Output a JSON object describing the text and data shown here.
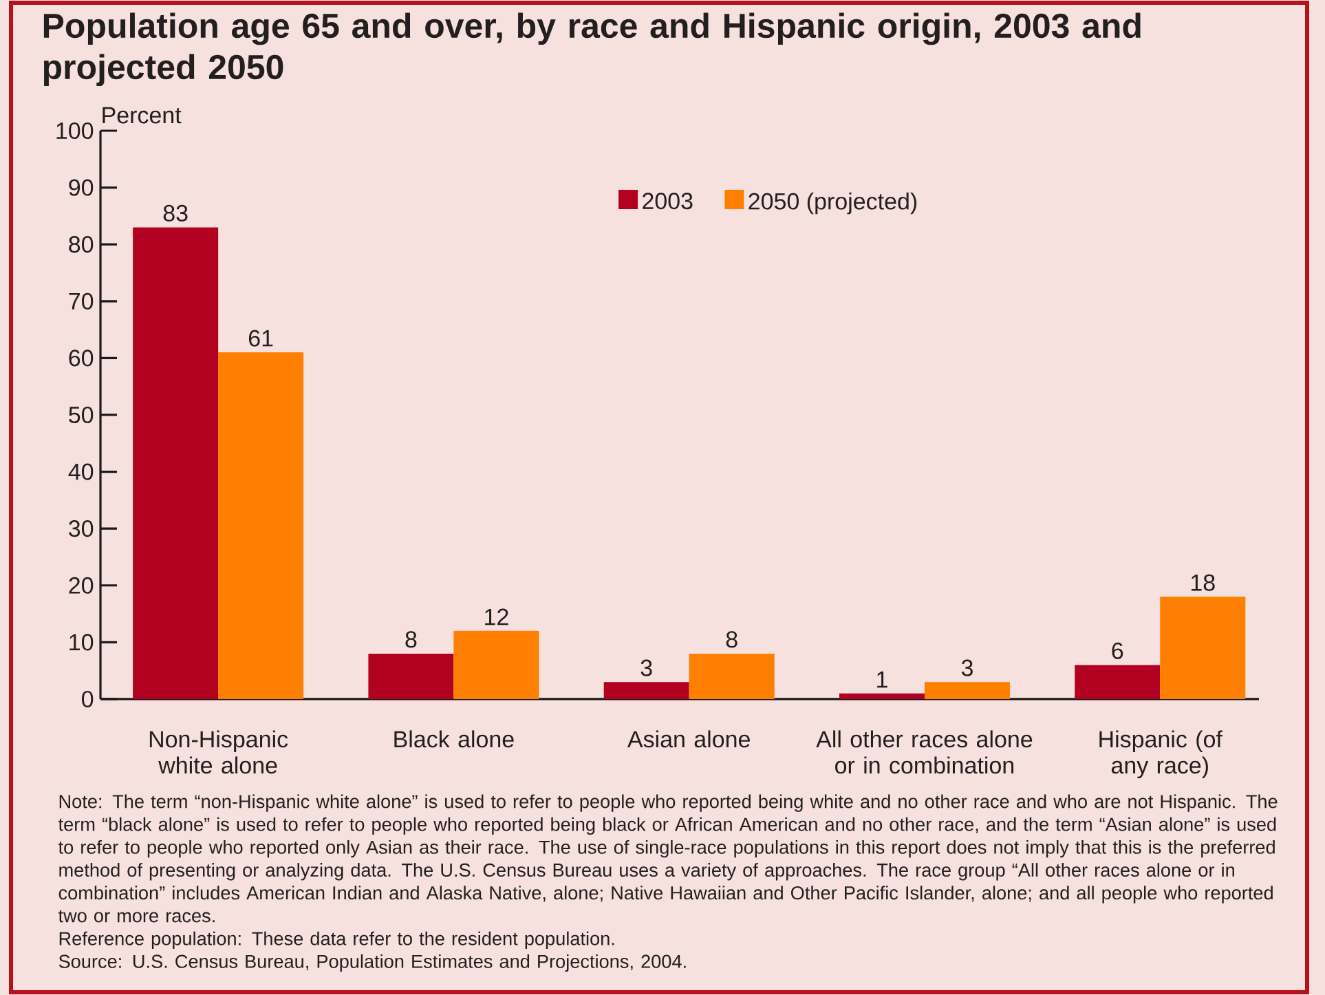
{
  "chart_data": {
    "type": "bar",
    "title": "Population age 65 and over, by race and Hispanic origin, 2003 and projected 2050",
    "ylabel": "Percent",
    "categories": [
      "Non-Hispanic white alone",
      "Black alone",
      "Asian alone",
      "All other races alone or in combination",
      "Hispanic (of any race)"
    ],
    "series": [
      {
        "name": "2003",
        "color": "#b20020",
        "values": [
          83,
          8,
          3,
          1,
          6
        ]
      },
      {
        "name": "2050 (projected)",
        "color": "#ff7f00",
        "values": [
          61,
          12,
          8,
          3,
          18
        ]
      }
    ],
    "ylim": [
      0,
      100
    ],
    "yticks": [
      0,
      10,
      20,
      30,
      40,
      50,
      60,
      70,
      80,
      90,
      100
    ],
    "data_labels": true,
    "legend": "top",
    "annotations": [
      "Note: The term “non-Hispanic white alone” is used to refer to people who reported being white and no other race and who are not Hispanic. The term “black alone” is used to refer to people who reported being black or African American and no other race, and the term “Asian alone” is used to refer to people who reported only Asian as their race. The use of single-race populations in this report does not imply that this is the preferred method of presenting or analyzing data. The U.S. Census Bureau uses a variety of approaches. The race group “All other races alone or in combination” includes American Indian and Alaska Native, alone; Native Hawaiian and Other Pacific Islander, alone; and all people who reported two or more races.",
      "Reference population: These data refer to the resident population.",
      "Source: U.S. Census Bureau, Population Estimates and Projections, 2004."
    ]
  }
}
